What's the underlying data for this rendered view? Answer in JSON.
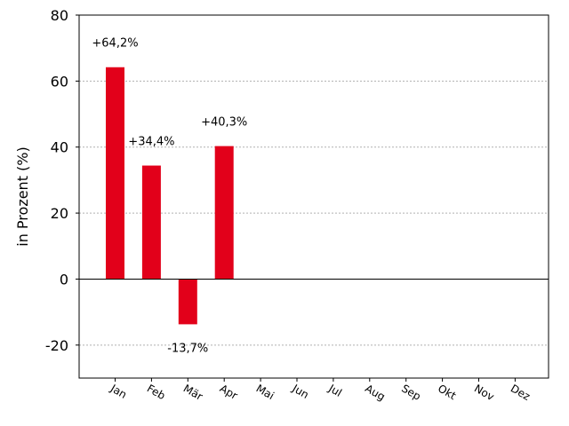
{
  "chart_data": {
    "type": "bar",
    "categories": [
      "Jan",
      "Feb",
      "Mär",
      "Apr",
      "Mai",
      "Jun",
      "Jul",
      "Aug",
      "Sep",
      "Okt",
      "Nov",
      "Dez"
    ],
    "values": [
      64.2,
      34.4,
      -13.7,
      40.3,
      0,
      0,
      0,
      0,
      0,
      0,
      0,
      0
    ],
    "data_labels": [
      "+64,2%",
      "+34,4%",
      "-13,7%",
      "+40,3%",
      "",
      "",
      "",
      "",
      "",
      "",
      "",
      ""
    ],
    "title": "",
    "xlabel": "",
    "ylabel": "in Prozent (%)",
    "ylim": [
      -30,
      80
    ],
    "yticks": [
      -20,
      0,
      20,
      40,
      60,
      80
    ],
    "grid": "horizontal-dotted",
    "colors": {
      "bar": "#e2001a",
      "grid": "#b0b0b0",
      "zero_line": "#000000"
    }
  }
}
